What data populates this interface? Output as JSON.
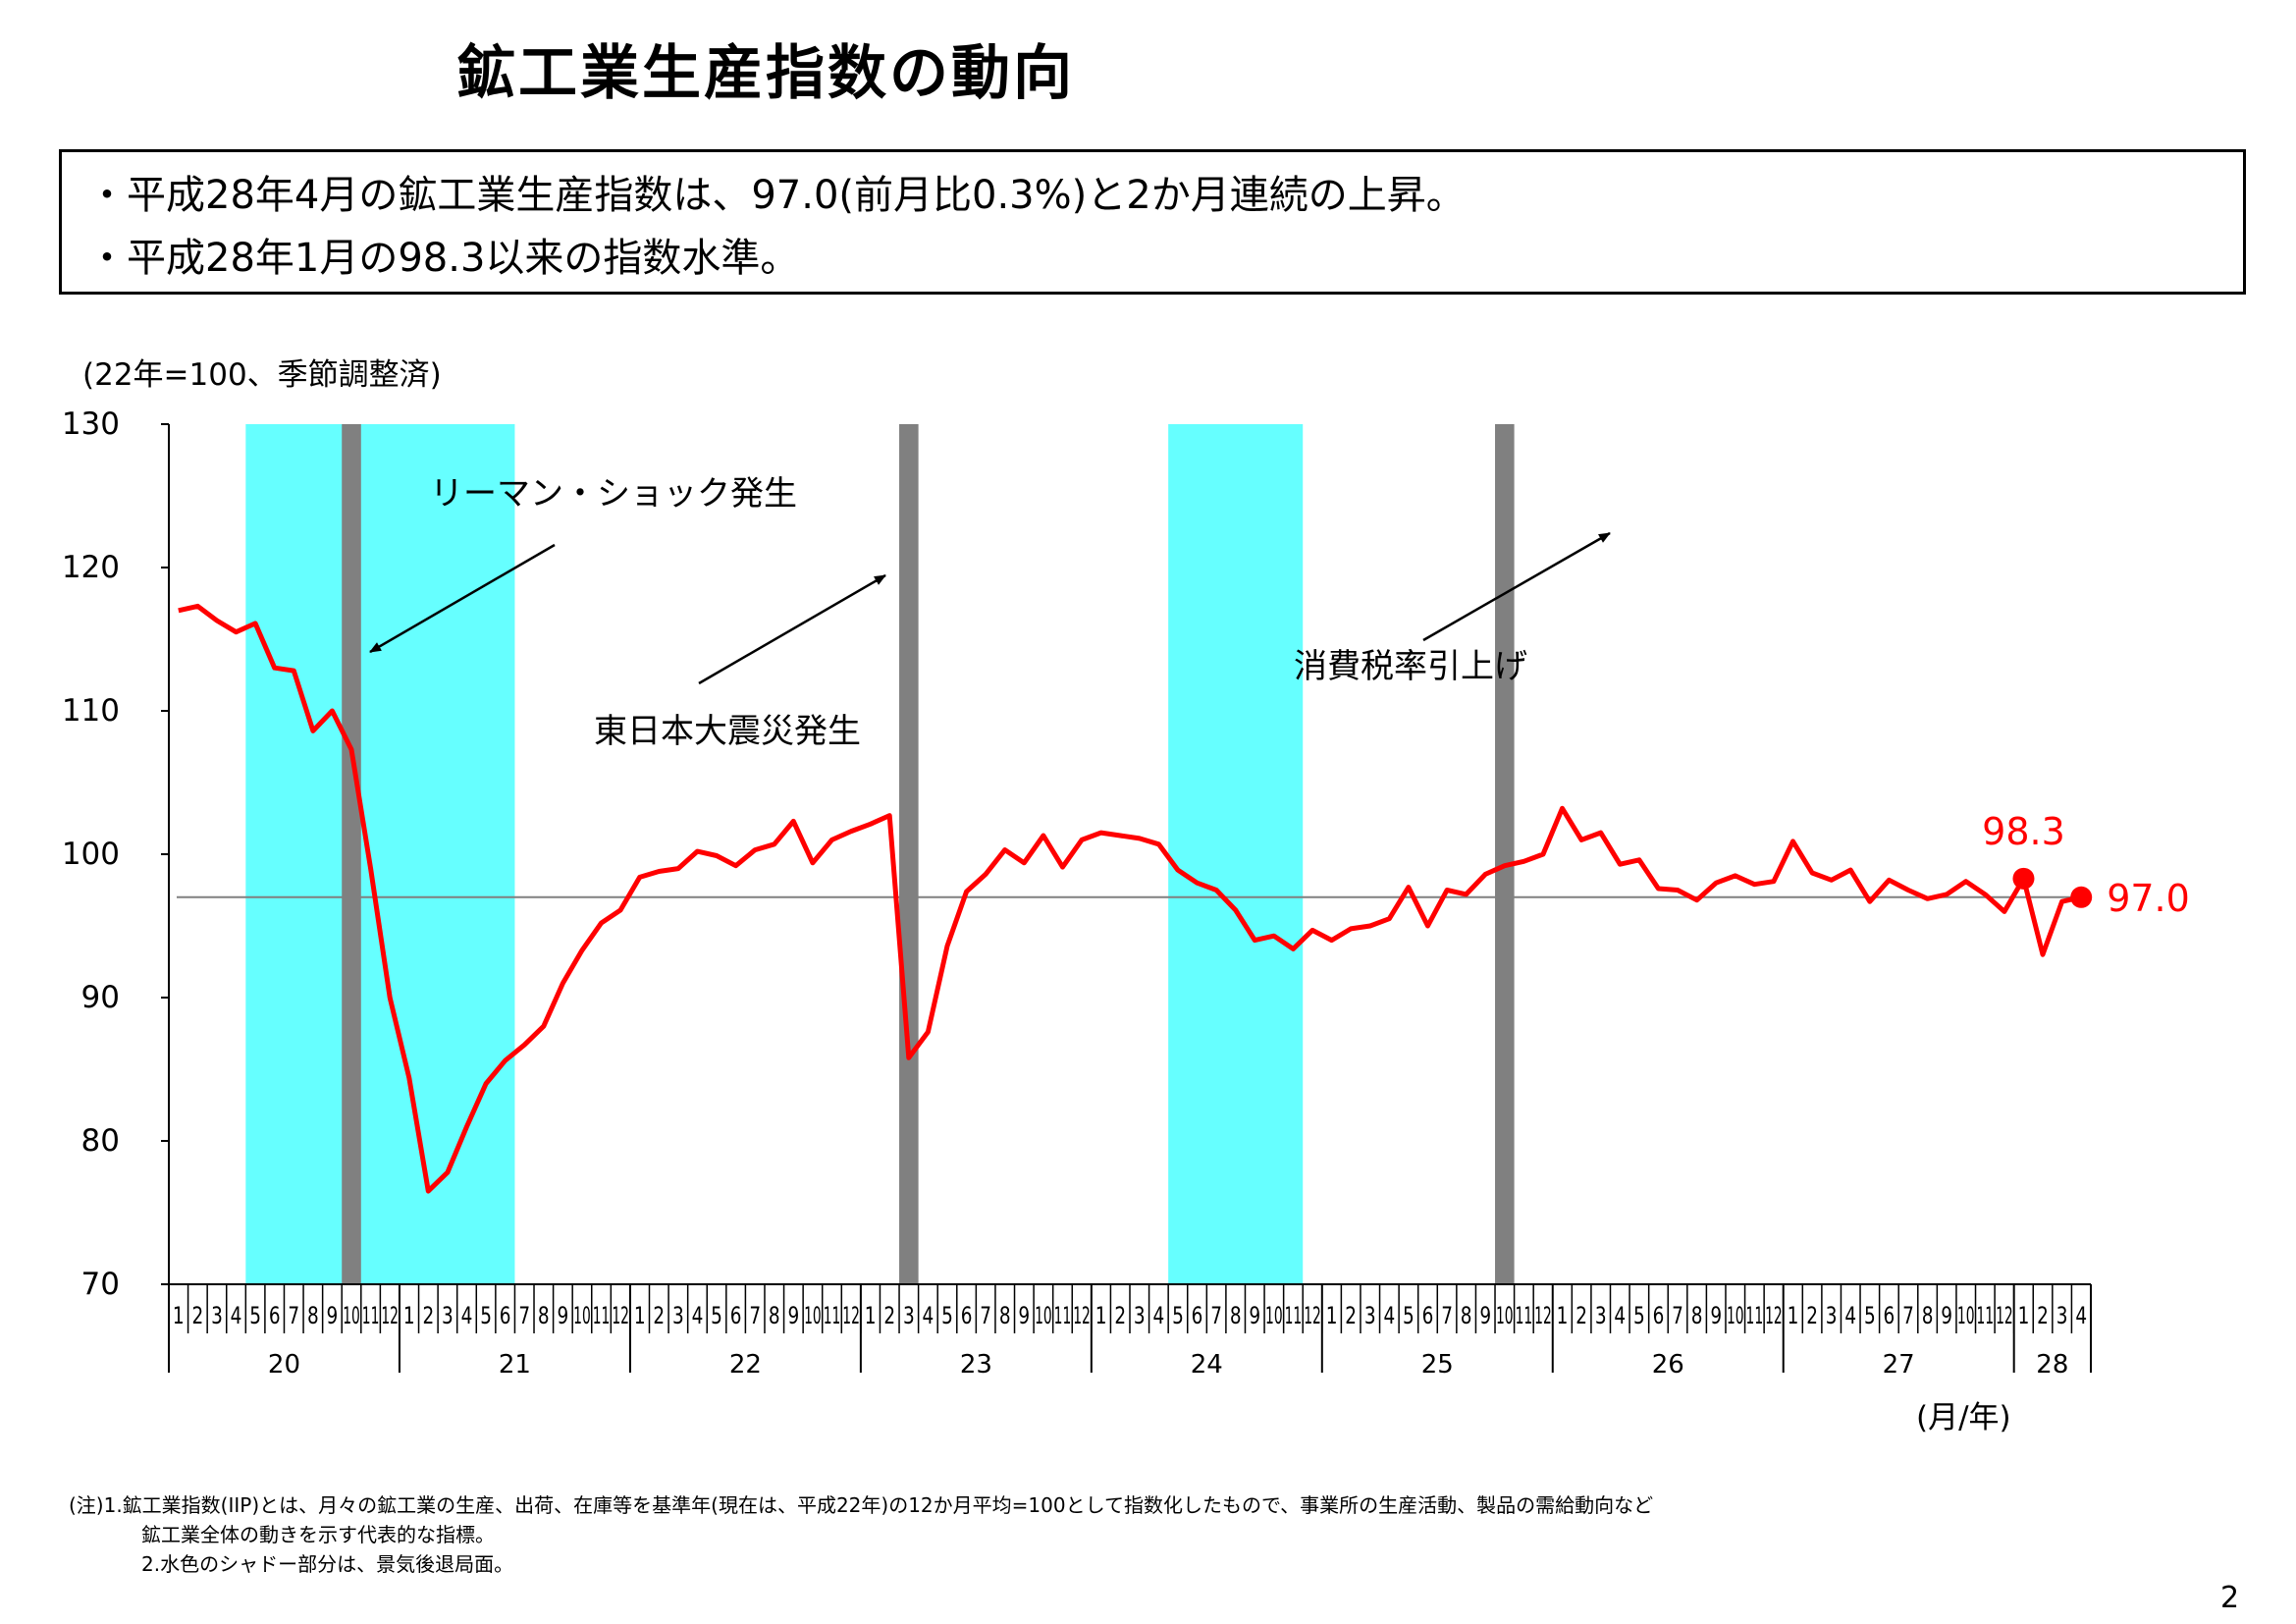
{
  "title": "鉱工業生産指数の動向",
  "summary": [
    "・平成28年4月の鉱工業生産指数は、97.0(前月比0.3%)と2か月連続の上昇。",
    "・平成28年1月の98.3以来の指数水準。"
  ],
  "unit_label": "(22年=100、季節調整済)",
  "x_unit_label": "(月/年)",
  "notes": [
    "(注)1.鉱工業指数(IIP)とは、月々の鉱工業の生産、出荷、在庫等を基準年(現在は、平成22年)の12か月平均=100として指数化したもので、事業所の生産活動、製品の需給動向など",
    "鉱工業全体の動きを示す代表的な指標。",
    "2.水色のシャドー部分は、景気後退局面。"
  ],
  "page_number": "2",
  "chart_data": {
    "type": "line",
    "ylim": [
      70,
      130
    ],
    "yticks": [
      70,
      80,
      90,
      100,
      110,
      120,
      130
    ],
    "years": [
      "20",
      "21",
      "22",
      "23",
      "24",
      "25",
      "26",
      "27",
      "28"
    ],
    "months_per_year": [
      12,
      12,
      12,
      12,
      12,
      12,
      12,
      12,
      4
    ],
    "series": [
      {
        "color": "#ff0000",
        "values": [
          117.0,
          117.3,
          116.3,
          115.5,
          116.1,
          113.0,
          112.8,
          108.6,
          110.0,
          107.3,
          99.0,
          90.0,
          84.4,
          76.5,
          77.8,
          81.0,
          84.0,
          85.6,
          86.7,
          88.0,
          91.0,
          93.3,
          95.2,
          96.1,
          98.4,
          98.8,
          99.0,
          100.2,
          99.9,
          99.2,
          100.3,
          100.7,
          102.3,
          99.4,
          101.0,
          101.6,
          102.1,
          102.7,
          85.8,
          87.6,
          93.6,
          97.4,
          98.6,
          100.3,
          99.4,
          101.3,
          99.1,
          101.0,
          101.5,
          101.3,
          101.1,
          100.7,
          98.9,
          98.0,
          97.5,
          96.1,
          94.0,
          94.3,
          93.4,
          94.7,
          94.0,
          94.8,
          95.0,
          95.5,
          97.7,
          95.0,
          97.5,
          97.2,
          98.6,
          99.2,
          99.5,
          100.0,
          103.2,
          101.0,
          101.5,
          99.3,
          99.6,
          97.6,
          97.5,
          96.8,
          98.0,
          98.5,
          97.9,
          98.1,
          100.9,
          98.7,
          98.2,
          98.9,
          96.7,
          98.2,
          97.5,
          96.9,
          97.2,
          98.1,
          97.2,
          96.0,
          98.3,
          93.0,
          96.7,
          97.0
        ]
      }
    ],
    "reference_line": {
      "value": 97.0,
      "color": "#808080"
    },
    "recession_shades": [
      [
        4,
        18
      ],
      [
        52,
        59
      ]
    ],
    "event_bars": [
      9,
      38,
      69
    ],
    "highlights": [
      {
        "index": 96,
        "label": "98.3"
      },
      {
        "index": 99,
        "label": "97.0"
      }
    ],
    "annotations": [
      "リーマン・ショック発生",
      "東日本大震災発生",
      "消費税率引上げ"
    ],
    "shade_color": "#66ffff",
    "bar_color": "#808080"
  }
}
